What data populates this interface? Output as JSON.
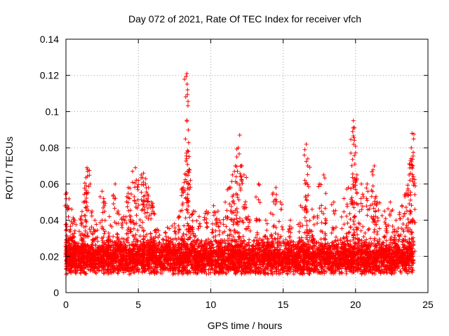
{
  "chart_data": {
    "type": "scatter",
    "title": "Day 072 of 2021, Rate Of TEC Index for receiver vfch",
    "xlabel": "GPS time / hours",
    "ylabel": "ROTI / TECUs",
    "xlim": [
      0,
      25
    ],
    "ylim": [
      0,
      0.14
    ],
    "grid": true,
    "marker": "+",
    "color": "#ff0000",
    "x_ticks": [
      {
        "value": 0,
        "label": "0"
      },
      {
        "value": 5,
        "label": "5"
      },
      {
        "value": 10,
        "label": "10"
      },
      {
        "value": 15,
        "label": "15"
      },
      {
        "value": 20,
        "label": "20"
      },
      {
        "value": 25,
        "label": "25"
      }
    ],
    "y_ticks": [
      {
        "value": 0,
        "label": "0"
      },
      {
        "value": 0.02,
        "label": "0.02"
      },
      {
        "value": 0.04,
        "label": "0.04"
      },
      {
        "value": 0.06,
        "label": "0.06"
      },
      {
        "value": 0.08,
        "label": "0.08"
      },
      {
        "value": 0.1,
        "label": "0.1"
      },
      {
        "value": 0.12,
        "label": "0.12"
      },
      {
        "value": 0.14,
        "label": "0.14"
      }
    ],
    "series": [
      {
        "name": "ROTI",
        "points": [
          [
            0.05,
            0.055
          ],
          [
            0.1,
            0.048
          ],
          [
            0.15,
            0.03
          ],
          [
            0.2,
            0.025
          ],
          [
            0.3,
            0.035
          ],
          [
            0.4,
            0.046
          ],
          [
            0.6,
            0.04
          ],
          [
            1.0,
            0.041
          ],
          [
            1.2,
            0.05
          ],
          [
            1.45,
            0.069
          ],
          [
            1.5,
            0.068
          ],
          [
            1.4,
            0.059
          ],
          [
            1.8,
            0.045
          ],
          [
            2.0,
            0.04
          ],
          [
            2.5,
            0.056
          ],
          [
            2.6,
            0.052
          ],
          [
            3.0,
            0.042
          ],
          [
            3.4,
            0.06
          ],
          [
            3.6,
            0.045
          ],
          [
            4.0,
            0.042
          ],
          [
            4.3,
            0.058
          ],
          [
            4.4,
            0.052
          ],
          [
            4.6,
            0.067
          ],
          [
            4.8,
            0.069
          ],
          [
            5.0,
            0.062
          ],
          [
            5.2,
            0.065
          ],
          [
            5.35,
            0.066
          ],
          [
            5.5,
            0.06
          ],
          [
            5.7,
            0.058
          ],
          [
            5.9,
            0.05
          ],
          [
            6.0,
            0.045
          ],
          [
            6.3,
            0.035
          ],
          [
            7.0,
            0.036
          ],
          [
            7.5,
            0.038
          ],
          [
            7.9,
            0.045
          ],
          [
            8.1,
            0.058
          ],
          [
            8.3,
            0.065
          ],
          [
            8.35,
            0.121
          ],
          [
            8.4,
            0.112
          ],
          [
            8.45,
            0.078
          ],
          [
            8.5,
            0.068
          ],
          [
            8.6,
            0.062
          ],
          [
            8.8,
            0.045
          ],
          [
            9.2,
            0.042
          ],
          [
            9.7,
            0.045
          ],
          [
            10.2,
            0.048
          ],
          [
            10.5,
            0.045
          ],
          [
            11.0,
            0.05
          ],
          [
            11.3,
            0.058
          ],
          [
            11.5,
            0.065
          ],
          [
            11.7,
            0.07
          ],
          [
            11.8,
            0.075
          ],
          [
            11.9,
            0.08
          ],
          [
            12.0,
            0.087
          ],
          [
            12.1,
            0.07
          ],
          [
            12.3,
            0.065
          ],
          [
            12.6,
            0.042
          ],
          [
            13.3,
            0.06
          ],
          [
            13.8,
            0.04
          ],
          [
            14.3,
            0.055
          ],
          [
            14.5,
            0.058
          ],
          [
            14.8,
            0.05
          ],
          [
            15.5,
            0.04
          ],
          [
            16.2,
            0.048
          ],
          [
            16.5,
            0.062
          ],
          [
            16.6,
            0.082
          ],
          [
            16.7,
            0.07
          ],
          [
            17.0,
            0.046
          ],
          [
            17.5,
            0.06
          ],
          [
            17.8,
            0.065
          ],
          [
            18.5,
            0.05
          ],
          [
            19.2,
            0.052
          ],
          [
            19.5,
            0.058
          ],
          [
            19.8,
            0.089
          ],
          [
            19.85,
            0.095
          ],
          [
            19.9,
            0.091
          ],
          [
            19.95,
            0.071
          ],
          [
            20.1,
            0.065
          ],
          [
            20.4,
            0.06
          ],
          [
            20.8,
            0.06
          ],
          [
            21.2,
            0.065
          ],
          [
            21.3,
            0.07
          ],
          [
            21.5,
            0.05
          ],
          [
            22.0,
            0.045
          ],
          [
            22.4,
            0.05
          ],
          [
            22.8,
            0.04
          ],
          [
            23.2,
            0.048
          ],
          [
            23.5,
            0.055
          ],
          [
            23.7,
            0.065
          ],
          [
            23.8,
            0.073
          ],
          [
            23.85,
            0.08
          ],
          [
            23.9,
            0.088
          ],
          [
            23.95,
            0.07
          ]
        ]
      }
    ],
    "background_band": {
      "description_values": "dense band of points across 0-24 h",
      "x_range": [
        0,
        24
      ],
      "y_center": 0.016,
      "y_spread": 0.012
    }
  }
}
